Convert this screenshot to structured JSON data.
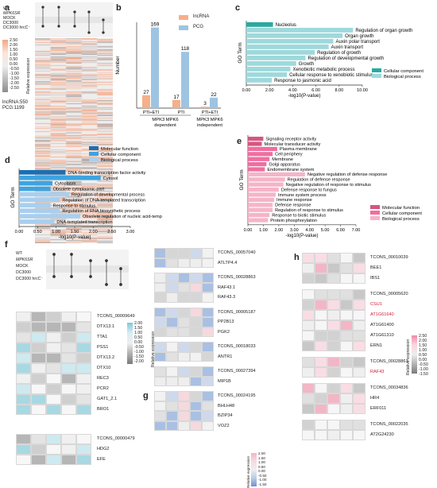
{
  "a": {
    "label": "a",
    "conds": [
      "WT",
      "MPK6SR",
      "MOCK",
      "DC3000",
      "DC3000 hrcC⁻"
    ],
    "legend_title": "Relative expression",
    "legend_ticks": [
      "2.50",
      "2.00",
      "1.50",
      "1.00",
      "0.50",
      "0.00",
      "-0.50",
      "-1.00",
      "-1.50",
      "-2.00",
      "-2.50"
    ],
    "counts": [
      "lncRNA:550",
      "PCG:1199"
    ]
  },
  "b": {
    "label": "b",
    "legend": [
      "lncRNA",
      "PCG"
    ],
    "colors": {
      "lncRNA": "#f4b08a",
      "PCG": "#9ec4e2"
    },
    "group_labels": [
      "MPK3 MPK6\ndependent",
      "MPK3 MPK6\nindependent"
    ]
  },
  "c": {
    "label": "c",
    "legend": [
      "Cellular component",
      "Biological process"
    ],
    "colors": {
      "Cellular component": "#2aaaa0",
      "Biological process": "#9ed9dc"
    }
  },
  "d": {
    "label": "d",
    "legend": [
      "Molecular function",
      "Cellular component",
      "Biological process"
    ],
    "colors": {
      "Molecular function": "#1b6fb5",
      "Cellular component": "#3fa3de",
      "Biological process": "#a9cfee"
    }
  },
  "e": {
    "label": "e",
    "legend": [
      "Molecular function",
      "Cellular component",
      "Biological process"
    ],
    "colors": {
      "Molecular function": "#d6567f",
      "Cellular component": "#ef6ea0",
      "Biological process": "#f6b4c8"
    }
  },
  "f": {
    "label": "f",
    "conds": [
      "WT",
      "MPK6SR",
      "MOCK",
      "DC3000",
      "DC3000 hrcC⁻"
    ],
    "legend_title": "Relative expression",
    "legend_ticks": [
      "2.00",
      "1.50",
      "1.00",
      "0.50",
      "0.00",
      "-0.50",
      "-1.00",
      "-1.50",
      "-2.00"
    ],
    "block1": [
      "TCONS_00009649",
      "DTX13.1",
      "TTA1",
      "PSS1",
      "DTX13.2",
      "DTX10",
      "REC3",
      "PCR2",
      "GAT1_2.1",
      "BRO1"
    ],
    "block2": [
      "TCONS_00000479",
      "HDG2",
      "EFE"
    ]
  },
  "g": {
    "label": "g",
    "blocks": [
      [
        "TCONS_00057040",
        "ATLTP4.4"
      ],
      [
        "TCONS_00028863",
        "RAF43.1",
        "RAF43.3"
      ],
      [
        "TCONS_00005187",
        "PP2B13",
        "PGK2"
      ],
      [
        "TCONS_00018033",
        "ANTR1"
      ],
      [
        "TCONS_00027394",
        "MIP1B"
      ],
      [
        "TCONS_00024195",
        "BHLH48",
        "BZIP34",
        "VOZ2"
      ]
    ],
    "legend_title": "Relative expression",
    "legend_ticks": [
      "2.00",
      "1.50",
      "1.00",
      "0.50",
      "0.00",
      "-0.50",
      "-1.00",
      "-1.50"
    ]
  },
  "h": {
    "label": "h",
    "blocks": [
      [
        "TCONS_00010039",
        "BEE1",
        "IBS1"
      ],
      [
        "TCONS_00005620",
        "CSU1",
        "AT1G61640",
        "AT1G61400",
        "AT1G61310",
        "ERN1"
      ],
      [
        "TCONS_00028863",
        "RAF43"
      ],
      [
        "TCONS_00034836",
        "HR4",
        "ERF011"
      ],
      [
        "TCONS_00022035",
        "AT2G24230"
      ]
    ],
    "red_genes": [
      "CSU1",
      "AT1G61640",
      "RAF43"
    ],
    "legend_title": "Relative expression",
    "legend_ticks": [
      "2.50",
      "2.00",
      "1.50",
      "1.00",
      "0.50",
      "0.00",
      "-0.50",
      "-1.00",
      "-1.50"
    ]
  },
  "chart_data": [
    {
      "panel": "b",
      "type": "bar",
      "ylabel": "Number",
      "xlabel": "",
      "categories": [
        "PTI+ETI",
        "PTI",
        "PTI+ETI"
      ],
      "series": [
        {
          "name": "lncRNA",
          "values": [
            27,
            17,
            3
          ]
        },
        {
          "name": "PCG",
          "values": [
            169,
            118,
            22
          ]
        }
      ],
      "ylim": [
        0,
        180
      ]
    },
    {
      "panel": "c",
      "type": "bar",
      "ylabel": "GO Term",
      "xlabel": "-log10(P-value)",
      "xticks": [
        "0.00",
        "2.00",
        "4.00",
        "6.00",
        "8.00",
        "10.00"
      ],
      "xlim": [
        0,
        10
      ],
      "categories": [
        "Nucleolus",
        "Regulation of organ growth",
        "Organ growth",
        "Auxin polar transport",
        "Auxin transport",
        "Regulation of growth",
        "Regulation of developmental growth",
        "Growth",
        "Xenobiotic metabolic process",
        "Cellular response to xenobiotic stimulus",
        "Response to jasmonic acid"
      ],
      "values": [
        2.3,
        9.2,
        8.3,
        7.5,
        7.1,
        5.9,
        5.1,
        4.3,
        3.8,
        3.5,
        2.2
      ],
      "groups": [
        "Cellular component",
        "Biological process",
        "Biological process",
        "Biological process",
        "Biological process",
        "Biological process",
        "Biological process",
        "Biological process",
        "Biological process",
        "Biological process",
        "Biological process"
      ]
    },
    {
      "panel": "d",
      "type": "bar",
      "ylabel": "GO Term",
      "xlabel": "-log10(P-value)",
      "xticks": [
        "0.00",
        "0.50",
        "1.00",
        "1.50",
        "2.00",
        "2.50",
        "3.00"
      ],
      "xlim": [
        0,
        3
      ],
      "categories": [
        "DNA-binding transcription factor activity",
        "Cytosol",
        "Cytoplasm",
        "Obsolete cytoplasmic part",
        "Regulation of developmental process",
        "Regulation of DNA-templated transcription",
        "Response to stimulus",
        "Regulation of RNA biosynthetic process",
        "Obsolete regulation of nucleic acid-templated transcription",
        "DNA-templated transcription"
      ],
      "values": [
        1.25,
        2.2,
        0.9,
        0.85,
        1.35,
        1.1,
        0.85,
        1.1,
        1.65,
        0.95
      ],
      "groups": [
        "Molecular function",
        "Cellular component",
        "Cellular component",
        "Cellular component",
        "Biological process",
        "Biological process",
        "Biological process",
        "Biological process",
        "Biological process",
        "Biological process"
      ]
    },
    {
      "panel": "e",
      "type": "bar",
      "ylabel": "GO Term",
      "xlabel": "-log10(P-value)",
      "xticks": [
        "0.00",
        "1.00",
        "2.00",
        "3.00",
        "4.00",
        "5.00",
        "6.00",
        "7.00"
      ],
      "xlim": [
        0,
        7
      ],
      "categories": [
        "Signaling receptor activity",
        "Molecular transducer activity",
        "Plasma membrane",
        "Cell periphery",
        "Membrane",
        "Golgi apparatus",
        "Endomembrane system",
        "Negative regulation of defense response",
        "Regulation of defense response",
        "Negative regulation of response to stimulus",
        "Defense response to fungus",
        "Immune system process",
        "Immune response",
        "Defense response",
        "Regulation of response to stimulus",
        "Response to biotic stimulus",
        "Protein phosphorylation"
      ],
      "values": [
        1.0,
        0.9,
        1.9,
        1.6,
        1.4,
        1.2,
        1.1,
        3.7,
        2.4,
        2.3,
        2.0,
        1.8,
        1.7,
        1.6,
        1.6,
        1.4,
        1.3
      ],
      "groups": [
        "Molecular function",
        "Molecular function",
        "Cellular component",
        "Cellular component",
        "Cellular component",
        "Cellular component",
        "Cellular component",
        "Biological process",
        "Biological process",
        "Biological process",
        "Biological process",
        "Biological process",
        "Biological process",
        "Biological process",
        "Biological process",
        "Biological process",
        "Biological process"
      ]
    }
  ]
}
